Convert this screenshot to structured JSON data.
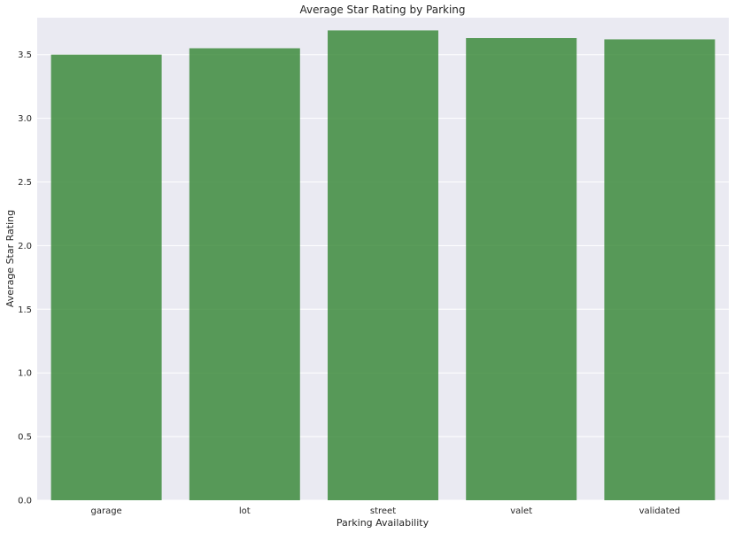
{
  "chart_data": {
    "type": "bar",
    "title": "Average Star Rating by Parking",
    "xlabel": "Parking Availability",
    "ylabel": "Average Star Rating",
    "categories": [
      "garage",
      "lot",
      "street",
      "valet",
      "validated"
    ],
    "values": [
      3.5,
      3.55,
      3.69,
      3.63,
      3.62
    ],
    "ylim": [
      0,
      3.79
    ],
    "yticks": [
      "0.0",
      "0.5",
      "1.0",
      "1.5",
      "2.0",
      "2.5",
      "3.0",
      "3.5"
    ],
    "grid": true,
    "bar_color": "#3d8b3d",
    "background_color": "#eaeaf2"
  }
}
